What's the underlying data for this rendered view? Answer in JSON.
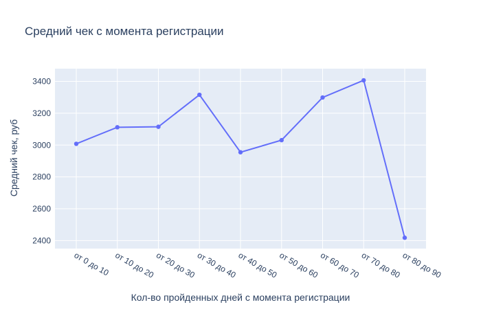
{
  "chart_data": {
    "type": "line",
    "title": "Средний чек с момента регистрации",
    "xlabel": "Кол-во пройденных дней с момента регистрации",
    "ylabel": "Средний чек, руб",
    "categories": [
      "от 0 до 10",
      "от 10 до 20",
      "от 20 до 30",
      "от 30 до 40",
      "от 40 до 50",
      "от 50 до 60",
      "от 60 до 70",
      "от 70 до 80",
      "от 80 до 90"
    ],
    "series": [
      {
        "values": [
          3008,
          3112,
          3115,
          3316,
          2955,
          3031,
          3299,
          3407,
          2418
        ]
      }
    ],
    "ylim": [
      2350,
      3480
    ],
    "yticks": [
      2400,
      2600,
      2800,
      3000,
      3200,
      3400
    ],
    "grid": true,
    "colors": {
      "line": "#636efa",
      "plot_bg": "#e5ecf6",
      "grid": "#ffffff"
    }
  }
}
